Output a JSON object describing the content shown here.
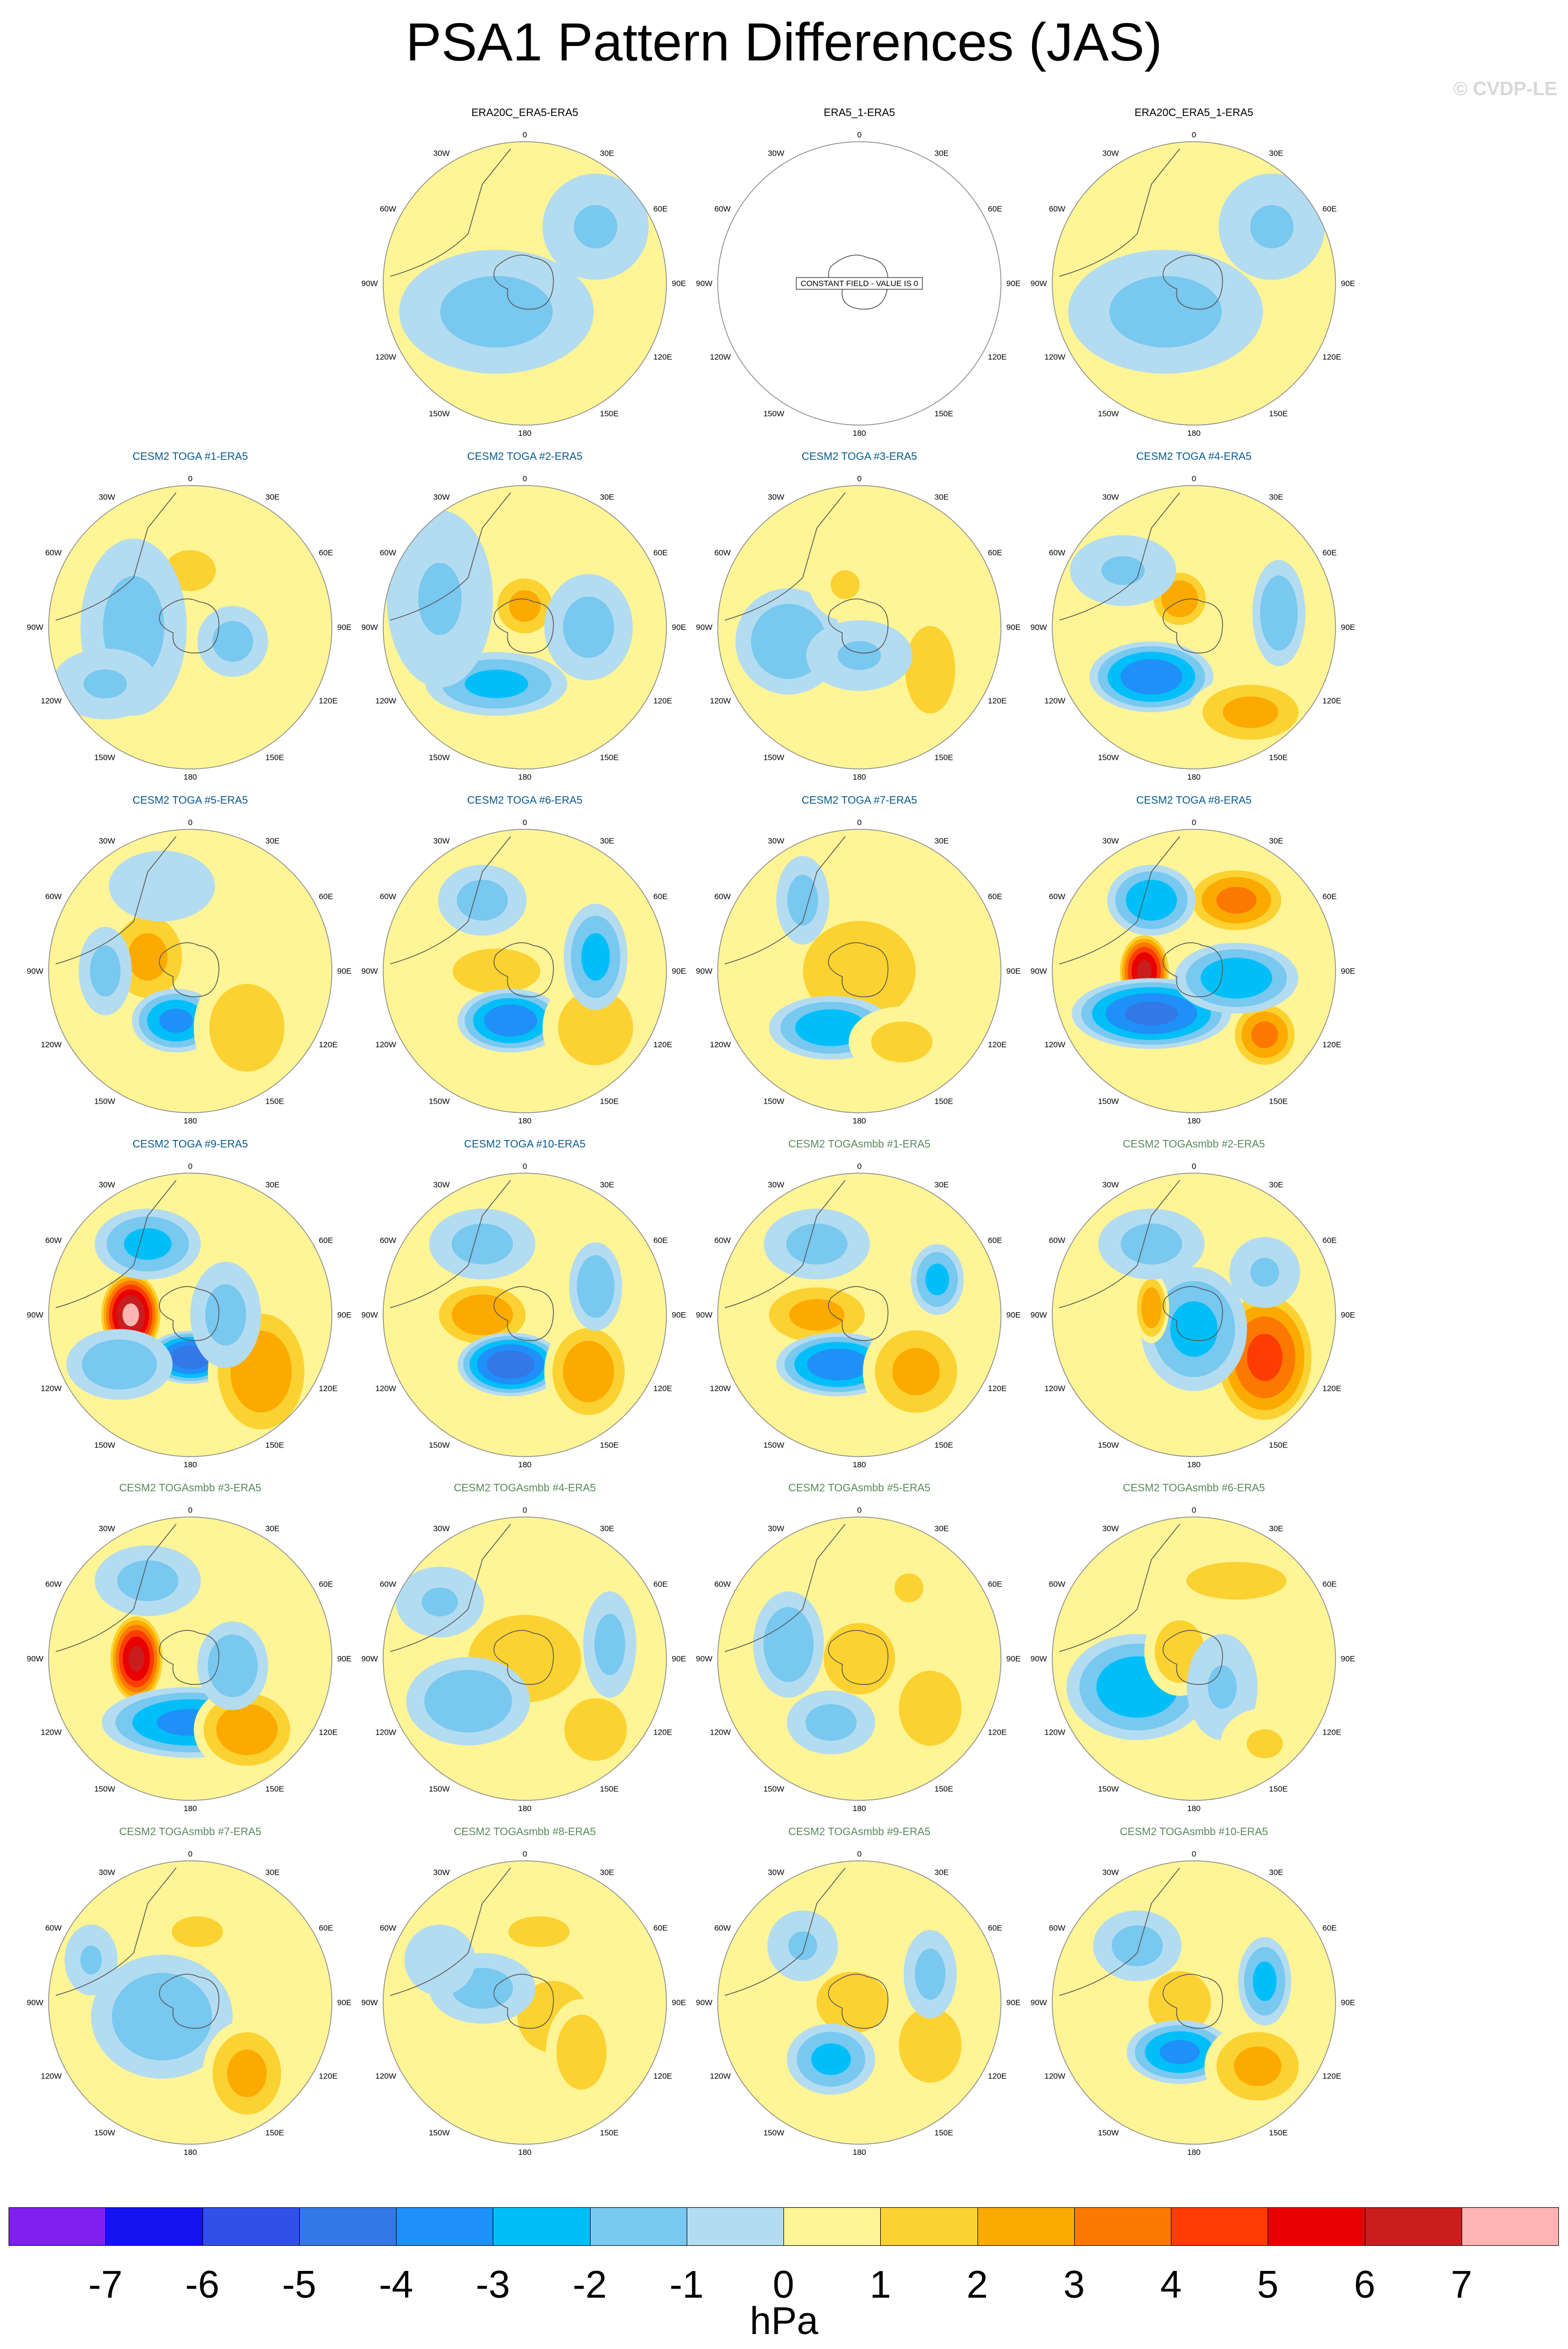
{
  "title": "PSA1 Pattern Differences (JAS)",
  "watermark": "© CVDP-LE",
  "colors": {
    "obs_title": "#000000",
    "toga_title": "#0a5a8c",
    "togasmbb_title": "#5a8a5a",
    "levels": [
      "#8020f0",
      "#1414f0",
      "#3050e8",
      "#3478e8",
      "#1e90f8",
      "#00bff8",
      "#78c8f0",
      "#b4dcf0",
      "#fff596",
      "#fcd232",
      "#fcaa00",
      "#fc7800",
      "#fc3c00",
      "#e80000",
      "#c81e1e",
      "#ffb4b4"
    ]
  },
  "colorbar": {
    "tick_labels": [
      "-7",
      "-6",
      "-5",
      "-4",
      "-3",
      "-2",
      "-1",
      "0",
      "1",
      "2",
      "3",
      "4",
      "5",
      "6",
      "7"
    ],
    "units": "hPa"
  },
  "map_labels": {
    "top": "0",
    "bottom": "180",
    "left": "90W",
    "right": "90E",
    "upper_left_1": "30W",
    "upper_left_2": "60W",
    "upper_right_1": "30E",
    "upper_right_2": "60E",
    "lower_left_1": "120W",
    "lower_left_2": "150W",
    "lower_right_1": "120E",
    "lower_right_2": "150E"
  },
  "constant_field_note": "CONSTANT FIELD - VALUE IS 0",
  "panels": [
    {
      "title": "ERA20C_ERA5-ERA5",
      "group": "obs",
      "blobs": [
        [
          -0.2,
          0.2,
          0.55,
          0.35,
          -1.5
        ],
        [
          0.5,
          -0.4,
          0.3,
          0.3,
          -1.2
        ]
      ]
    },
    {
      "title": "ERA5_1-ERA5",
      "group": "obs",
      "constant": true,
      "blobs": []
    },
    {
      "title": "ERA20C_ERA5_1-ERA5",
      "group": "obs",
      "blobs": [
        [
          -0.2,
          0.2,
          0.55,
          0.35,
          -1.5
        ],
        [
          0.55,
          -0.4,
          0.3,
          0.3,
          -1.2
        ]
      ]
    },
    {
      "title": "CESM2 TOGA #1-ERA5",
      "group": "toga",
      "blobs": [
        [
          -0.3,
          0.1,
          0.3,
          0.2,
          1.5
        ],
        [
          0.0,
          -0.4,
          0.25,
          0.2,
          1.5
        ],
        [
          -0.4,
          0.0,
          0.3,
          0.5,
          -1.5
        ],
        [
          0.3,
          0.1,
          0.2,
          0.2,
          -1.5
        ],
        [
          -0.6,
          0.4,
          0.3,
          0.2,
          -1.2
        ]
      ]
    },
    {
      "title": "CESM2 TOGA #2-ERA5",
      "group": "toga",
      "blobs": [
        [
          0.0,
          -0.15,
          0.2,
          0.2,
          2.5
        ],
        [
          -0.2,
          0.4,
          0.4,
          0.18,
          -2.5
        ],
        [
          0.45,
          0.0,
          0.25,
          0.3,
          -1.5
        ],
        [
          -0.6,
          -0.2,
          0.3,
          0.5,
          -1.2
        ]
      ]
    },
    {
      "title": "CESM2 TOGA #3-ERA5",
      "group": "toga",
      "blobs": [
        [
          -0.5,
          0.1,
          0.3,
          0.3,
          -2.0
        ],
        [
          0.5,
          0.3,
          0.2,
          0.35,
          2.0
        ],
        [
          -0.1,
          -0.3,
          0.2,
          0.2,
          1.2
        ],
        [
          0.0,
          0.2,
          0.3,
          0.2,
          -1.2
        ]
      ]
    },
    {
      "title": "CESM2 TOGA #4-ERA5",
      "group": "toga",
      "blobs": [
        [
          -0.1,
          -0.2,
          0.18,
          0.18,
          3.0
        ],
        [
          -0.3,
          0.35,
          0.35,
          0.2,
          -4.0
        ],
        [
          0.4,
          0.6,
          0.35,
          0.2,
          2.5
        ],
        [
          0.6,
          -0.1,
          0.15,
          0.3,
          -2.0
        ],
        [
          -0.5,
          -0.4,
          0.3,
          0.2,
          -1.2
        ]
      ]
    },
    {
      "title": "CESM2 TOGA #5-ERA5",
      "group": "toga",
      "blobs": [
        [
          -0.3,
          -0.1,
          0.25,
          0.3,
          2.5
        ],
        [
          -0.1,
          0.35,
          0.25,
          0.18,
          -3.5
        ],
        [
          0.4,
          0.4,
          0.3,
          0.35,
          2.0
        ],
        [
          -0.6,
          0.0,
          0.15,
          0.25,
          -1.5
        ],
        [
          -0.2,
          -0.6,
          0.3,
          0.2,
          -1.0
        ]
      ]
    },
    {
      "title": "CESM2 TOGA #6-ERA5",
      "group": "toga",
      "blobs": [
        [
          -0.2,
          0.0,
          0.35,
          0.18,
          2.0
        ],
        [
          -0.1,
          0.35,
          0.3,
          0.18,
          -4.0
        ],
        [
          0.5,
          0.4,
          0.3,
          0.3,
          2.0
        ],
        [
          0.5,
          -0.1,
          0.18,
          0.3,
          -2.5
        ],
        [
          -0.3,
          -0.5,
          0.25,
          0.2,
          -1.5
        ]
      ]
    },
    {
      "title": "CESM2 TOGA #7-ERA5",
      "group": "toga",
      "blobs": [
        [
          0.0,
          0.0,
          0.45,
          0.4,
          2.0
        ],
        [
          -0.2,
          0.4,
          0.35,
          0.18,
          -3.0
        ],
        [
          -0.4,
          -0.5,
          0.15,
          0.25,
          -1.5
        ],
        [
          0.3,
          0.5,
          0.3,
          0.2,
          1.5
        ]
      ]
    },
    {
      "title": "CESM2 TOGA #8-ERA5",
      "group": "toga",
      "blobs": [
        [
          -0.35,
          0.0,
          0.15,
          0.22,
          6.5
        ],
        [
          -0.3,
          0.3,
          0.45,
          0.2,
          -4.5
        ],
        [
          0.3,
          -0.5,
          0.3,
          0.2,
          3.5
        ],
        [
          -0.3,
          -0.5,
          0.25,
          0.2,
          -3.0
        ],
        [
          0.5,
          0.45,
          0.2,
          0.2,
          3.5
        ],
        [
          0.3,
          0.05,
          0.35,
          0.2,
          -3.0
        ]
      ]
    },
    {
      "title": "CESM2 TOGA #9-ERA5",
      "group": "toga",
      "blobs": [
        [
          -0.42,
          0.0,
          0.18,
          0.25,
          7.5
        ],
        [
          0.0,
          0.3,
          0.25,
          0.15,
          -5.0
        ],
        [
          0.5,
          0.4,
          0.3,
          0.4,
          3.0
        ],
        [
          -0.3,
          -0.5,
          0.3,
          0.2,
          -2.5
        ],
        [
          -0.5,
          0.35,
          0.3,
          0.2,
          -2.0
        ],
        [
          0.25,
          0.0,
          0.2,
          0.3,
          -1.5
        ]
      ]
    },
    {
      "title": "CESM2 TOGA #10-ERA5",
      "group": "toga",
      "blobs": [
        [
          -0.3,
          0.0,
          0.3,
          0.2,
          3.0
        ],
        [
          -0.1,
          0.35,
          0.3,
          0.18,
          -5.0
        ],
        [
          0.45,
          0.4,
          0.25,
          0.3,
          3.0
        ],
        [
          0.5,
          -0.2,
          0.15,
          0.25,
          -2.0
        ],
        [
          -0.3,
          -0.5,
          0.3,
          0.2,
          -1.5
        ]
      ]
    },
    {
      "title": "CESM2 TOGAsmbb #1-ERA5",
      "group": "togasmbb",
      "blobs": [
        [
          -0.3,
          0.0,
          0.35,
          0.2,
          2.5
        ],
        [
          -0.15,
          0.35,
          0.35,
          0.18,
          -4.0
        ],
        [
          0.4,
          0.4,
          0.3,
          0.3,
          2.5
        ],
        [
          0.55,
          -0.25,
          0.15,
          0.2,
          -2.5
        ],
        [
          -0.3,
          -0.5,
          0.3,
          0.2,
          -1.5
        ]
      ]
    },
    {
      "title": "CESM2 TOGAsmbb #2-ERA5",
      "group": "togasmbb",
      "blobs": [
        [
          0.5,
          0.3,
          0.3,
          0.4,
          4.5
        ],
        [
          0.0,
          0.1,
          0.3,
          0.35,
          -2.5
        ],
        [
          -0.3,
          -0.05,
          0.1,
          0.2,
          3.0
        ],
        [
          -0.3,
          -0.5,
          0.3,
          0.2,
          -1.5
        ],
        [
          0.5,
          -0.3,
          0.2,
          0.2,
          -1.2
        ]
      ]
    },
    {
      "title": "CESM2 TOGAsmbb #3-ERA5",
      "group": "togasmbb",
      "blobs": [
        [
          -0.38,
          0.0,
          0.16,
          0.26,
          6.5
        ],
        [
          0.0,
          0.45,
          0.5,
          0.2,
          -3.5
        ],
        [
          0.4,
          0.5,
          0.3,
          0.25,
          3.0
        ],
        [
          0.3,
          0.05,
          0.2,
          0.25,
          -2.0
        ],
        [
          -0.3,
          -0.55,
          0.3,
          0.2,
          -1.5
        ]
      ]
    },
    {
      "title": "CESM2 TOGAsmbb #4-ERA5",
      "group": "togasmbb",
      "blobs": [
        [
          0.0,
          0.0,
          0.45,
          0.35,
          2.0
        ],
        [
          -0.4,
          0.3,
          0.35,
          0.25,
          -2.0
        ],
        [
          0.5,
          0.5,
          0.25,
          0.25,
          2.0
        ],
        [
          0.6,
          -0.1,
          0.15,
          0.3,
          -1.5
        ],
        [
          -0.6,
          -0.4,
          0.25,
          0.2,
          -1.2
        ]
      ]
    },
    {
      "title": "CESM2 TOGAsmbb #5-ERA5",
      "group": "togasmbb",
      "blobs": [
        [
          0.0,
          0.0,
          0.35,
          0.35,
          1.5
        ],
        [
          0.5,
          0.35,
          0.25,
          0.3,
          2.0
        ],
        [
          -0.5,
          -0.1,
          0.2,
          0.3,
          -2.0
        ],
        [
          -0.2,
          0.45,
          0.25,
          0.18,
          -1.5
        ],
        [
          0.35,
          -0.5,
          0.2,
          0.2,
          1.2
        ]
      ]
    },
    {
      "title": "CESM2 TOGAsmbb #6-ERA5",
      "group": "togasmbb",
      "blobs": [
        [
          -0.4,
          0.2,
          0.4,
          0.3,
          -3.0
        ],
        [
          -0.1,
          -0.05,
          0.2,
          0.25,
          2.0
        ],
        [
          0.3,
          -0.55,
          0.4,
          0.15,
          2.0
        ],
        [
          0.2,
          0.2,
          0.2,
          0.3,
          -1.2
        ],
        [
          0.5,
          0.6,
          0.25,
          0.2,
          1.2
        ]
      ]
    },
    {
      "title": "CESM2 TOGAsmbb #7-ERA5",
      "group": "togasmbb",
      "blobs": [
        [
          -0.2,
          0.1,
          0.4,
          0.35,
          -2.0
        ],
        [
          0.4,
          0.5,
          0.25,
          0.3,
          2.5
        ],
        [
          0.05,
          -0.5,
          0.25,
          0.15,
          1.5
        ],
        [
          -0.7,
          -0.3,
          0.15,
          0.2,
          -1.2
        ]
      ]
    },
    {
      "title": "CESM2 TOGAsmbb #8-ERA5",
      "group": "togasmbb",
      "blobs": [
        [
          0.2,
          0.1,
          0.35,
          0.35,
          1.5
        ],
        [
          0.4,
          0.35,
          0.2,
          0.3,
          2.0
        ],
        [
          -0.3,
          -0.1,
          0.3,
          0.2,
          -1.5
        ],
        [
          0.1,
          -0.5,
          0.3,
          0.15,
          1.5
        ],
        [
          -0.6,
          -0.3,
          0.2,
          0.2,
          -1.0
        ]
      ]
    },
    {
      "title": "CESM2 TOGAsmbb #9-ERA5",
      "group": "togasmbb",
      "blobs": [
        [
          -0.05,
          0.0,
          0.35,
          0.3,
          1.5
        ],
        [
          -0.2,
          0.4,
          0.25,
          0.2,
          -2.5
        ],
        [
          0.5,
          0.3,
          0.25,
          0.3,
          2.0
        ],
        [
          0.5,
          -0.2,
          0.15,
          0.25,
          -1.5
        ],
        [
          -0.4,
          -0.4,
          0.2,
          0.2,
          -1.2
        ]
      ]
    },
    {
      "title": "CESM2 TOGAsmbb #10-ERA5",
      "group": "togasmbb",
      "blobs": [
        [
          -0.1,
          0.0,
          0.25,
          0.25,
          2.0
        ],
        [
          -0.1,
          0.35,
          0.3,
          0.18,
          -3.5
        ],
        [
          0.45,
          0.45,
          0.3,
          0.25,
          2.5
        ],
        [
          0.5,
          -0.15,
          0.15,
          0.25,
          -2.5
        ],
        [
          -0.4,
          -0.4,
          0.25,
          0.2,
          -1.5
        ]
      ]
    }
  ]
}
